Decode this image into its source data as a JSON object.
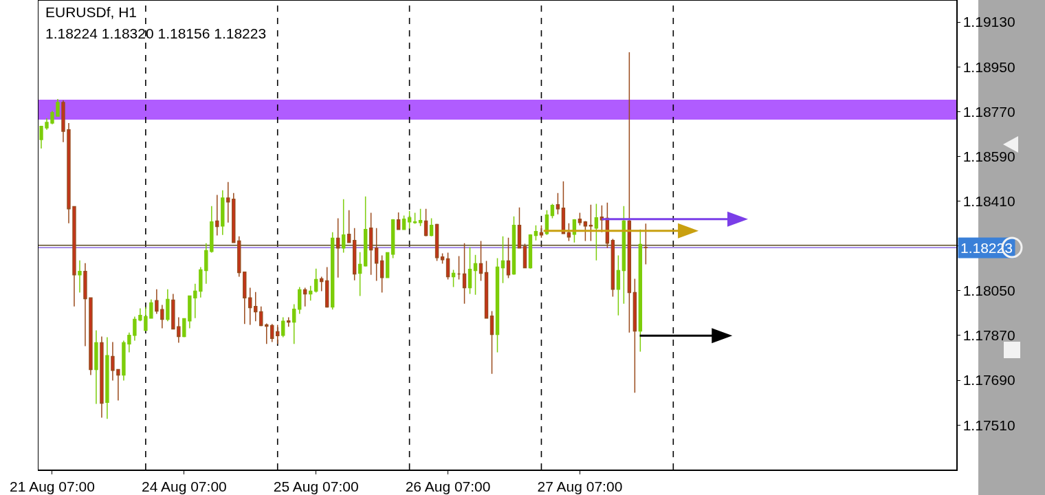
{
  "chart_data": {
    "type": "candlestick",
    "title": "EURUSDf, H1",
    "subtitle": "1.18224 1.18320 1.18156 1.18223",
    "categories": [
      null,
      null,
      "21 Aug 07:00",
      null,
      null,
      null,
      null,
      null,
      null,
      null,
      null,
      null,
      null,
      null,
      null,
      null,
      null,
      null,
      null,
      null,
      null,
      null,
      null,
      null,
      null,
      null,
      "24 Aug 07:00",
      null,
      null,
      null,
      null,
      null,
      null,
      null,
      null,
      null,
      null,
      null,
      null,
      null,
      null,
      null,
      null,
      null,
      null,
      null,
      null,
      null,
      null,
      null,
      "25 Aug 07:00",
      null,
      null,
      null,
      null,
      null,
      null,
      null,
      null,
      null,
      null,
      null,
      null,
      null,
      null,
      null,
      null,
      null,
      null,
      null,
      null,
      null,
      null,
      null,
      "26 Aug 07:00",
      null,
      null,
      null,
      null,
      null,
      null,
      null,
      null,
      null,
      null,
      null,
      null,
      null,
      null,
      null,
      null,
      null,
      null,
      null,
      null,
      null,
      null,
      null,
      "27 Aug 07:00",
      null,
      null,
      null,
      null,
      null,
      null,
      null,
      null,
      null,
      null,
      null,
      null,
      null,
      null,
      null,
      null,
      null,
      null,
      null,
      null,
      null,
      null,
      null,
      null,
      null,
      null,
      null,
      null,
      null,
      null,
      null,
      null,
      null,
      null,
      null,
      null,
      null,
      null,
      null,
      null,
      null,
      null,
      null,
      null,
      null,
      null,
      null,
      null,
      null,
      null,
      null,
      null,
      null,
      null,
      null,
      null,
      null,
      null,
      null,
      null,
      null,
      null,
      null,
      null,
      null,
      null,
      null,
      null
    ],
    "ohlc": [
      [
        1.18658,
        1.18713,
        1.18622,
        1.18711
      ],
      [
        1.18705,
        1.18744,
        1.18697,
        1.18727
      ],
      [
        1.18724,
        1.18774,
        1.18719,
        1.18766
      ],
      [
        1.18752,
        1.18821,
        1.18752,
        1.18807
      ],
      [
        1.18807,
        1.18815,
        1.18647,
        1.18691
      ],
      [
        1.18697,
        1.18724,
        1.18321,
        1.18379
      ],
      [
        1.18388,
        1.18388,
        1.17987,
        1.18114
      ],
      [
        1.18114,
        1.18172,
        1.18043,
        1.18128
      ],
      [
        1.18128,
        1.18161,
        1.17827,
        1.18018
      ],
      [
        1.18021,
        1.18021,
        1.17711,
        1.17733
      ],
      [
        1.17733,
        1.17891,
        1.17595,
        1.17841
      ],
      [
        1.17841,
        1.17866,
        1.1754,
        1.17598
      ],
      [
        1.17601,
        1.17863,
        1.17535,
        1.17789
      ],
      [
        1.17786,
        1.17844,
        1.17689,
        1.1773
      ],
      [
        1.17733,
        1.17733,
        1.17609,
        1.17711
      ],
      [
        1.17711,
        1.17849,
        1.17689,
        1.17841
      ],
      [
        1.17836,
        1.17882,
        1.17802,
        1.17871
      ],
      [
        1.17871,
        1.17946,
        1.17849,
        1.17935
      ],
      [
        1.17932,
        1.17979,
        1.17927,
        1.17951
      ],
      [
        1.17891,
        1.17985,
        1.17888,
        1.17946
      ],
      [
        1.1794,
        1.18015,
        1.17938,
        1.18001
      ],
      [
        1.1801,
        1.18056,
        1.17957,
        1.17968
      ],
      [
        1.17974,
        1.17993,
        1.17899,
        1.17935
      ],
      [
        1.17935,
        1.18056,
        1.17927,
        1.18015
      ],
      [
        1.18012,
        1.18037,
        1.17896,
        1.17896
      ],
      [
        1.17905,
        1.17943,
        1.17841,
        1.17866
      ],
      [
        1.17866,
        1.17938,
        1.17863,
        1.17938
      ],
      [
        1.17929,
        1.18029,
        1.17899,
        1.18029
      ],
      [
        1.18021,
        1.18078,
        1.1794,
        1.18048
      ],
      [
        1.18048,
        1.18145,
        1.18023,
        1.18134
      ],
      [
        1.18131,
        1.18241,
        1.18078,
        1.18211
      ],
      [
        1.18208,
        1.1839,
        1.18203,
        1.18327
      ],
      [
        1.1833,
        1.18435,
        1.18272,
        1.18308
      ],
      [
        1.1831,
        1.18454,
        1.18274,
        1.18423
      ],
      [
        1.18423,
        1.18487,
        1.18324,
        1.18407
      ],
      [
        1.18418,
        1.18443,
        1.18244,
        1.18244
      ],
      [
        1.1825,
        1.18269,
        1.18106,
        1.18123
      ],
      [
        1.18125,
        1.18125,
        1.17916,
        1.18021
      ],
      [
        1.18021,
        1.18062,
        1.17913,
        1.17982
      ],
      [
        1.17987,
        1.18045,
        1.17927,
        1.17965
      ],
      [
        1.17965,
        1.17987,
        1.17907,
        1.1791
      ],
      [
        1.17913,
        1.17918,
        1.17836,
        1.17907
      ],
      [
        1.1791,
        1.17916,
        1.17844,
        1.17858
      ],
      [
        1.17885,
        1.17913,
        1.17836,
        1.17869
      ],
      [
        1.17871,
        1.17943,
        1.17863,
        1.17927
      ],
      [
        1.17929,
        1.17943,
        1.17905,
        1.17924
      ],
      [
        1.17924,
        1.17996,
        1.17836,
        1.17976
      ],
      [
        1.17976,
        1.18065,
        1.17957,
        1.18054
      ],
      [
        1.18054,
        1.18062,
        1.17987,
        1.18037
      ],
      [
        1.18037,
        1.1807,
        1.1801,
        1.18048
      ],
      [
        1.18048,
        1.18139,
        1.18043,
        1.18095
      ],
      [
        1.18098,
        1.18106,
        1.18048,
        1.18087
      ],
      [
        1.1809,
        1.18145,
        1.17982,
        1.17985
      ],
      [
        1.17985,
        1.18285,
        1.17974,
        1.18261
      ],
      [
        1.18261,
        1.18341,
        1.18103,
        1.18222
      ],
      [
        1.18222,
        1.18418,
        1.18203,
        1.18274
      ],
      [
        1.18277,
        1.18374,
        1.18244,
        1.18244
      ],
      [
        1.18252,
        1.18302,
        1.18092,
        1.18117
      ],
      [
        1.1812,
        1.18205,
        1.18029,
        1.18156
      ],
      [
        1.1815,
        1.18429,
        1.18147,
        1.18296
      ],
      [
        1.18302,
        1.18363,
        1.18114,
        1.18214
      ],
      [
        1.18222,
        1.18302,
        1.1809,
        1.18161
      ],
      [
        1.1817,
        1.18192,
        1.18043,
        1.18103
      ],
      [
        1.18103,
        1.18205,
        1.18101,
        1.18203
      ],
      [
        1.18197,
        1.18338,
        1.18181,
        1.18335
      ],
      [
        1.18335,
        1.18365,
        1.18296,
        1.18296
      ],
      [
        1.18296,
        1.18352,
        1.18294,
        1.18338
      ],
      [
        1.18327,
        1.18371,
        1.18299,
        1.18343
      ],
      [
        1.18324,
        1.18363,
        1.18319,
        1.18327
      ],
      [
        1.18324,
        1.18379,
        1.1831,
        1.18332
      ],
      [
        1.1833,
        1.18379,
        1.18269,
        1.18272
      ],
      [
        1.18272,
        1.18341,
        1.18269,
        1.18313
      ],
      [
        1.18316,
        1.18319,
        1.1817,
        1.18183
      ],
      [
        1.18186,
        1.182,
        1.18159,
        1.18175
      ],
      [
        1.18178,
        1.18203,
        1.18095,
        1.18106
      ],
      [
        1.18106,
        1.18134,
        1.18065,
        1.1812
      ],
      [
        1.18117,
        1.18189,
        1.18095,
        1.18117
      ],
      [
        1.18117,
        1.18241,
        1.17998,
        1.18062
      ],
      [
        1.18062,
        1.18225,
        1.18037,
        1.18136
      ],
      [
        1.18131,
        1.18194,
        1.18034,
        1.18159
      ],
      [
        1.18159,
        1.1825,
        1.1809,
        1.1812
      ],
      [
        1.18123,
        1.1817,
        1.1794,
        1.1794
      ],
      [
        1.17948,
        1.17968,
        1.17716,
        1.17874
      ],
      [
        1.17874,
        1.18181,
        1.17802,
        1.18145
      ],
      [
        1.18142,
        1.18269,
        1.18081,
        1.1817
      ],
      [
        1.1817,
        1.18263,
        1.18101,
        1.18114
      ],
      [
        1.18117,
        1.18349,
        1.18114,
        1.18313
      ],
      [
        1.18313,
        1.18385,
        1.18222,
        1.18222
      ],
      [
        1.18228,
        1.18239,
        1.18142,
        1.18142
      ],
      [
        1.18142,
        1.18277,
        1.18139,
        1.18274
      ],
      [
        1.18272,
        1.18313,
        1.18252,
        1.18288
      ],
      [
        1.18283,
        1.18313,
        1.18263,
        1.18274
      ],
      [
        1.1828,
        1.18374,
        1.18274,
        1.18354
      ],
      [
        1.18352,
        1.18399,
        1.18341,
        1.18393
      ],
      [
        1.18396,
        1.18443,
        1.18357,
        1.18379
      ],
      [
        1.18382,
        1.1849,
        1.1828,
        1.1828
      ],
      [
        1.18283,
        1.18321,
        1.1825,
        1.18266
      ],
      [
        1.18277,
        1.18338,
        1.18244,
        1.18335
      ],
      [
        1.18338,
        1.18363,
        1.18313,
        1.18324
      ],
      [
        1.18327,
        1.1833,
        1.1825,
        1.1831
      ],
      [
        1.18313,
        1.18396,
        1.1825,
        1.1831
      ],
      [
        1.18302,
        1.18399,
        1.18172,
        1.18343
      ],
      [
        1.18346,
        1.18393,
        1.18285,
        1.18335
      ],
      [
        1.18341,
        1.18404,
        1.18222,
        1.18241
      ],
      [
        1.18252,
        1.18258,
        1.18026,
        1.18056
      ],
      [
        1.18056,
        1.18192,
        1.17951,
        1.18131
      ],
      [
        1.18131,
        1.1839,
        1.17998,
        1.1833
      ],
      [
        1.1833,
        1.19009,
        1.17882,
        1.18043
      ],
      [
        1.18043,
        1.18098,
        1.1764,
        1.17888
      ],
      [
        1.17888,
        1.18296,
        1.17805,
        1.18236
      ],
      [
        1.18224,
        1.1832,
        1.18156,
        1.18223
      ],
      null,
      null,
      null,
      null,
      null,
      null,
      null,
      null,
      null,
      null,
      null,
      null,
      null,
      null,
      null,
      null,
      null,
      null,
      null,
      null,
      null,
      null,
      null,
      null,
      null,
      null,
      null,
      null,
      null,
      null,
      null,
      null,
      null,
      null,
      null,
      null,
      null,
      null,
      null,
      null,
      null,
      null,
      null,
      null,
      null,
      null,
      null,
      null,
      null,
      null,
      null,
      null,
      null,
      null,
      null,
      null
    ],
    "ylim": [
      1.17331,
      1.19216
    ],
    "yticks": [
      {
        "value": 1.1751,
        "label": "1.17510"
      },
      {
        "value": 1.1769,
        "label": "1.17690"
      },
      {
        "value": 1.1787,
        "label": "1.17870"
      },
      {
        "value": 1.1805,
        "label": "1.18050"
      },
      {
        "value": 1.1823,
        "label": null
      },
      {
        "value": 1.1841,
        "label": "1.18410"
      },
      {
        "value": 1.1859,
        "label": "1.18590"
      },
      {
        "value": 1.1877,
        "label": "1.18770"
      },
      {
        "value": 1.1895,
        "label": "1.18950"
      },
      {
        "value": 1.1913,
        "label": "1.19130"
      }
    ],
    "bands": [
      {
        "axis": "y",
        "from": 1.18738,
        "to": 1.18818,
        "color": "#b05cff"
      }
    ],
    "ref_lines": [
      {
        "axis": "y",
        "value": 1.18233,
        "color": "#5a4a20",
        "line_style": "solid"
      },
      {
        "axis": "y",
        "value": 1.18223,
        "color": "#8a6ae0",
        "line_style": "solid",
        "label": "1.18223"
      }
    ],
    "grid": false
  }
}
